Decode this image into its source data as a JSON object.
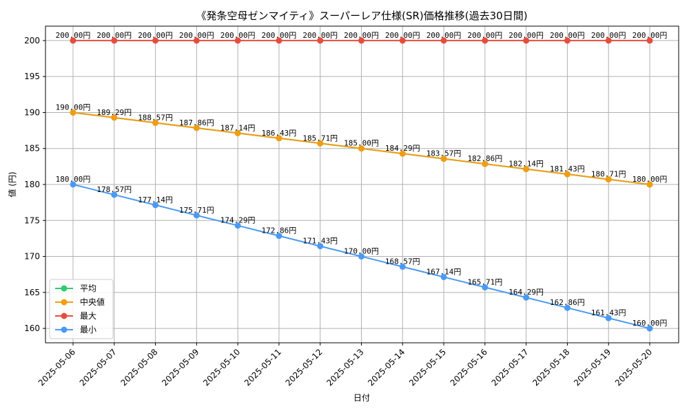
{
  "chart_data": {
    "type": "line",
    "title": "《発条空母ゼンマイティ》スーパーレア仕様(SR)価格推移(過去30日間)",
    "xlabel": "日付",
    "ylabel": "値 (円)",
    "ylim": [
      158,
      202
    ],
    "yticks": [
      160,
      165,
      170,
      175,
      180,
      185,
      190,
      195,
      200
    ],
    "grid": true,
    "legend_position": "lower-left",
    "categories": [
      "2025-05-06",
      "2025-05-07",
      "2025-05-08",
      "2025-05-09",
      "2025-05-10",
      "2025-05-11",
      "2025-05-12",
      "2025-05-13",
      "2025-05-14",
      "2025-05-15",
      "2025-05-16",
      "2025-05-17",
      "2025-05-18",
      "2025-05-19",
      "2025-05-20"
    ],
    "series": [
      {
        "name": "平均",
        "color": "#2ecc71",
        "values": [
          190.0,
          189.29,
          188.57,
          187.86,
          187.14,
          186.43,
          185.71,
          185.0,
          184.29,
          183.57,
          182.86,
          182.14,
          181.43,
          180.71,
          180.0
        ],
        "labels": []
      },
      {
        "name": "中央値",
        "color": "#f39c12",
        "values": [
          190.0,
          189.29,
          188.57,
          187.86,
          187.14,
          186.43,
          185.71,
          185.0,
          184.29,
          183.57,
          182.86,
          182.14,
          181.43,
          180.71,
          180.0
        ],
        "labels": [
          "190.00円",
          "189.29円",
          "188.57円",
          "187.86円",
          "187.14円",
          "186.43円",
          "185.71円",
          "185.00円",
          "184.29円",
          "183.57円",
          "182.86円",
          "182.14円",
          "181.43円",
          "180.71円",
          "180.00円"
        ]
      },
      {
        "name": "最大",
        "color": "#e74c3c",
        "values": [
          200,
          200,
          200,
          200,
          200,
          200,
          200,
          200,
          200,
          200,
          200,
          200,
          200,
          200,
          200
        ],
        "labels": [
          "200.00円",
          "200.00円",
          "200.00円",
          "200.00円",
          "200.00円",
          "200.00円",
          "200.00円",
          "200.00円",
          "200.00円",
          "200.00円",
          "200.00円",
          "200.00円",
          "200.00円",
          "200.00円",
          "200.00円"
        ]
      },
      {
        "name": "最小",
        "color": "#4a9af5",
        "values": [
          180.0,
          178.57,
          177.14,
          175.71,
          174.29,
          172.86,
          171.43,
          170.0,
          168.57,
          167.14,
          165.71,
          164.29,
          162.86,
          161.43,
          160.0
        ],
        "labels": [
          "180.00円",
          "178.57円",
          "177.14円",
          "175.71円",
          "174.29円",
          "172.86円",
          "171.43円",
          "170.00円",
          "168.57円",
          "167.14円",
          "165.71円",
          "164.29円",
          "162.86円",
          "161.43円",
          "160.00円"
        ]
      }
    ]
  }
}
